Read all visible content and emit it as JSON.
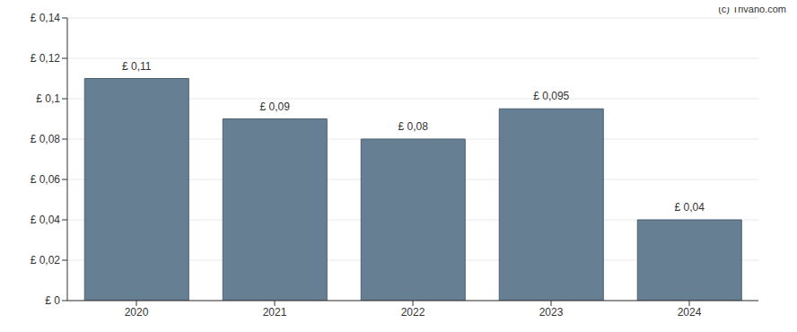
{
  "chart_data": {
    "type": "bar",
    "annotation": "(c) Trivano.com",
    "categories": [
      "2020",
      "2021",
      "2022",
      "2023",
      "2024"
    ],
    "values": [
      0.11,
      0.09,
      0.08,
      0.095,
      0.04
    ],
    "value_labels": [
      "£ 0,11",
      "£ 0,09",
      "£ 0,08",
      "£ 0,095",
      "£ 0,04"
    ],
    "data_labels": true,
    "color": "#667f93",
    "ylim": [
      0,
      0.14
    ],
    "yticks": [
      {
        "value": 0,
        "label": "£ 0"
      },
      {
        "value": 0.02,
        "label": "£ 0,02"
      },
      {
        "value": 0.04,
        "label": "£ 0,04"
      },
      {
        "value": 0.06,
        "label": "£ 0,06"
      },
      {
        "value": 0.08,
        "label": "£ 0,08"
      },
      {
        "value": 0.1,
        "label": "£ 0,1"
      },
      {
        "value": 0.12,
        "label": "£ 0,12"
      },
      {
        "value": 0.14,
        "label": "£ 0,14"
      }
    ],
    "grid": true
  }
}
